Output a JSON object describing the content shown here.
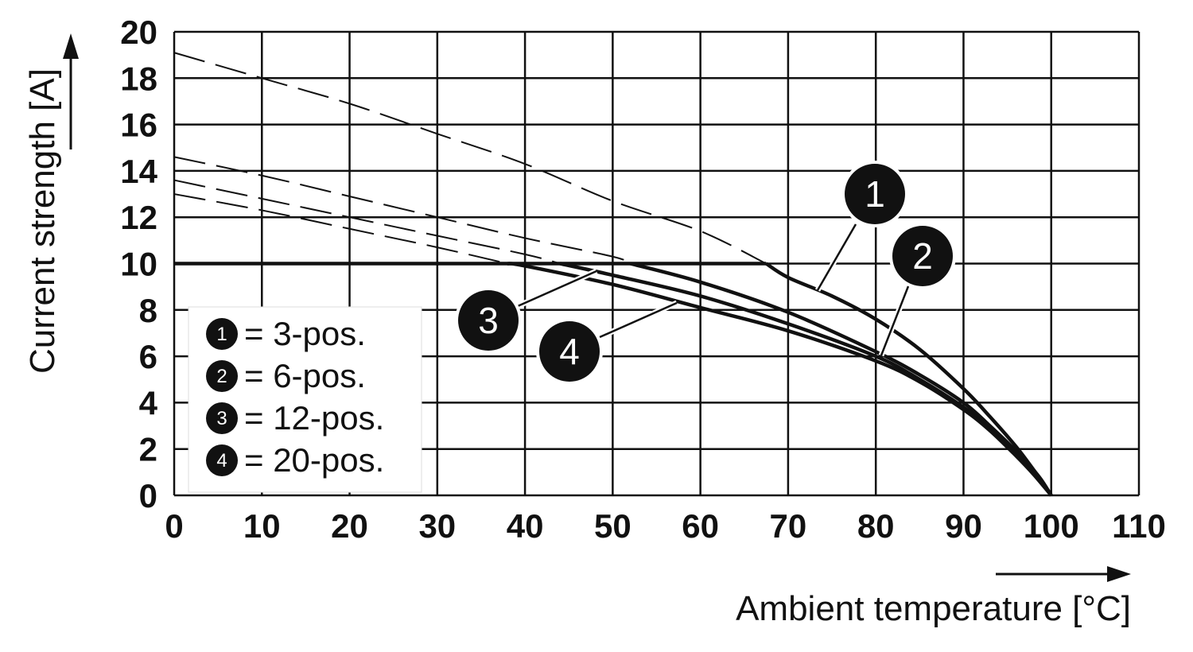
{
  "chart_data": {
    "type": "line",
    "xlabel": "Ambient temperature [°C]",
    "ylabel": "Current strength [A]",
    "xlim": [
      0,
      110
    ],
    "ylim": [
      0,
      20
    ],
    "x_ticks": [
      "0",
      "10",
      "20",
      "30",
      "40",
      "50",
      "60",
      "70",
      "80",
      "90",
      "100",
      "110"
    ],
    "y_ticks": [
      "0",
      "2",
      "4",
      "6",
      "8",
      "10",
      "12",
      "14",
      "16",
      "18",
      "20"
    ],
    "grid": true,
    "legend_position": "bottom-left",
    "rated_limit": 10,
    "series": [
      {
        "name": "3-pos.",
        "marker": "1",
        "dashed_x": [
          0,
          10,
          20,
          30,
          40,
          50,
          60,
          67.5
        ],
        "dashed_y": [
          19.1,
          18.0,
          16.9,
          15.6,
          14.3,
          12.7,
          11.4,
          10.0
        ],
        "x": [
          0,
          67.5,
          70,
          75,
          80,
          85,
          90,
          93,
          96,
          98,
          99,
          100
        ],
        "y": [
          10,
          10,
          9.4,
          8.6,
          7.6,
          6.3,
          4.6,
          3.4,
          2.1,
          1.1,
          0.6,
          0
        ]
      },
      {
        "name": "6-pos.",
        "marker": "2",
        "dashed_x": [
          0,
          10,
          20,
          30,
          40,
          50,
          52
        ],
        "dashed_y": [
          14.6,
          13.8,
          12.9,
          12.0,
          11.1,
          10.3,
          10.0
        ],
        "x": [
          0,
          52,
          60,
          70,
          80,
          85,
          90,
          93,
          96,
          98,
          100
        ],
        "y": [
          10,
          10,
          9.2,
          7.9,
          6.2,
          5.2,
          4.0,
          3.0,
          1.9,
          1.0,
          0
        ]
      },
      {
        "name": "12-pos.",
        "marker": "3",
        "dashed_x": [
          0,
          10,
          20,
          30,
          40,
          44
        ],
        "dashed_y": [
          13.6,
          12.8,
          12.0,
          11.2,
          10.4,
          10.0
        ],
        "x": [
          0,
          44,
          50,
          60,
          70,
          80,
          85,
          90,
          93,
          96,
          98,
          100
        ],
        "y": [
          10,
          10,
          9.5,
          8.6,
          7.4,
          6.0,
          5.0,
          3.8,
          2.9,
          1.8,
          1.0,
          0
        ]
      },
      {
        "name": "20-pos.",
        "marker": "4",
        "dashed_x": [
          0,
          10,
          20,
          30,
          38
        ],
        "dashed_y": [
          13.0,
          12.3,
          11.5,
          10.7,
          10.0
        ],
        "x": [
          0,
          38,
          40,
          50,
          60,
          70,
          80,
          85,
          90,
          93,
          96,
          98,
          100
        ],
        "y": [
          10,
          10,
          9.9,
          9.1,
          8.1,
          7.1,
          5.8,
          4.9,
          3.7,
          2.8,
          1.7,
          0.9,
          0
        ]
      }
    ],
    "legend": [
      {
        "marker": "1",
        "label": "= 3-pos."
      },
      {
        "marker": "2",
        "label": "= 6-pos."
      },
      {
        "marker": "3",
        "label": "= 12-pos."
      },
      {
        "marker": "4",
        "label": "= 20-pos."
      }
    ],
    "callouts": [
      {
        "marker": "1",
        "color": "#111111"
      },
      {
        "marker": "2",
        "color": "#111111"
      },
      {
        "marker": "3",
        "color": "#111111"
      },
      {
        "marker": "4",
        "color": "#111111"
      }
    ]
  }
}
